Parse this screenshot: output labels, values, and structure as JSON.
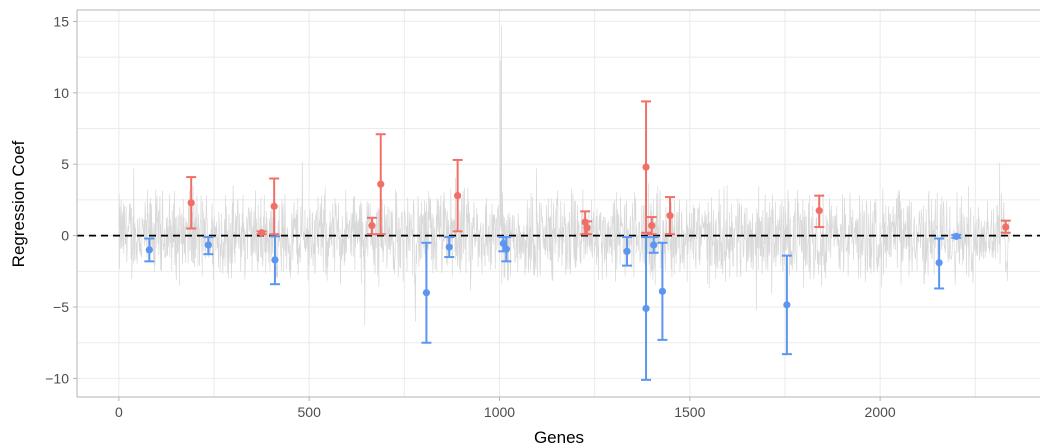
{
  "chart_data": {
    "type": "scatter",
    "title": "",
    "xlabel": "Genes",
    "ylabel": "Regression Coef",
    "xlim": [
      -110,
      2420
    ],
    "ylim": [
      -11.3,
      15.8
    ],
    "x_ticks": [
      0,
      500,
      1000,
      1500,
      2000
    ],
    "x_tick_labels": [
      "0",
      "500",
      "1000",
      "1500",
      "2000"
    ],
    "y_ticks": [
      -10,
      -5,
      0,
      5,
      10,
      15
    ],
    "y_tick_labels": [
      "−10",
      "−5",
      "0",
      "5",
      "10",
      "15"
    ],
    "grid": true,
    "legend": "none",
    "reference_line": {
      "y": 0,
      "style": "dashed",
      "color": "#000000"
    },
    "background_series": {
      "n_genes": 2340,
      "y_range": [
        -8,
        15
      ],
      "color": "#d9d9d9"
    },
    "colors": {
      "positive": "#f07068",
      "negative": "#5b96f0"
    },
    "series": [
      {
        "sign": "positive",
        "points": [
          {
            "x": 190,
            "y": 2.3,
            "lo": 0.5,
            "hi": 4.1
          },
          {
            "x": 375,
            "y": 0.2,
            "lo": 0.1,
            "hi": 0.3
          },
          {
            "x": 408,
            "y": 2.05,
            "lo": 0.1,
            "hi": 4.0
          },
          {
            "x": 665,
            "y": 0.7,
            "lo": 0.1,
            "hi": 1.25
          },
          {
            "x": 688,
            "y": 3.6,
            "lo": 0.1,
            "hi": 7.1
          },
          {
            "x": 890,
            "y": 2.8,
            "lo": 0.3,
            "hi": 5.3
          },
          {
            "x": 1225,
            "y": 0.95,
            "lo": 0.1,
            "hi": 1.7
          },
          {
            "x": 1230,
            "y": 0.55,
            "lo": 0.1,
            "hi": 1.0
          },
          {
            "x": 1385,
            "y": 4.8,
            "lo": 0.2,
            "hi": 9.4
          },
          {
            "x": 1400,
            "y": 0.7,
            "lo": 0.1,
            "hi": 1.3
          },
          {
            "x": 1448,
            "y": 1.4,
            "lo": 0.1,
            "hi": 2.7
          },
          {
            "x": 1840,
            "y": 1.75,
            "lo": 0.6,
            "hi": 2.8
          },
          {
            "x": 2330,
            "y": 0.6,
            "lo": 0.2,
            "hi": 1.05
          }
        ]
      },
      {
        "sign": "negative",
        "points": [
          {
            "x": 80,
            "y": -1.0,
            "lo": -1.8,
            "hi": -0.2
          },
          {
            "x": 235,
            "y": -0.65,
            "lo": -1.3,
            "hi": -0.1
          },
          {
            "x": 410,
            "y": -1.7,
            "lo": -3.4,
            "hi": -0.05
          },
          {
            "x": 808,
            "y": -4.0,
            "lo": -7.5,
            "hi": -0.5
          },
          {
            "x": 868,
            "y": -0.8,
            "lo": -1.5,
            "hi": -0.1
          },
          {
            "x": 1010,
            "y": -0.55,
            "lo": -1.1,
            "hi": -0.1
          },
          {
            "x": 1018,
            "y": -0.95,
            "lo": -1.8,
            "hi": -0.1
          },
          {
            "x": 1335,
            "y": -1.1,
            "lo": -2.1,
            "hi": -0.1
          },
          {
            "x": 1385,
            "y": -5.1,
            "lo": -10.1,
            "hi": -0.1
          },
          {
            "x": 1405,
            "y": -0.65,
            "lo": -1.2,
            "hi": -0.1
          },
          {
            "x": 1428,
            "y": -3.9,
            "lo": -7.3,
            "hi": -0.5
          },
          {
            "x": 1755,
            "y": -4.85,
            "lo": -8.3,
            "hi": -1.4
          },
          {
            "x": 2155,
            "y": -1.9,
            "lo": -3.7,
            "hi": -0.2
          },
          {
            "x": 2200,
            "y": -0.05,
            "lo": -0.15,
            "hi": 0.05
          }
        ]
      }
    ]
  }
}
